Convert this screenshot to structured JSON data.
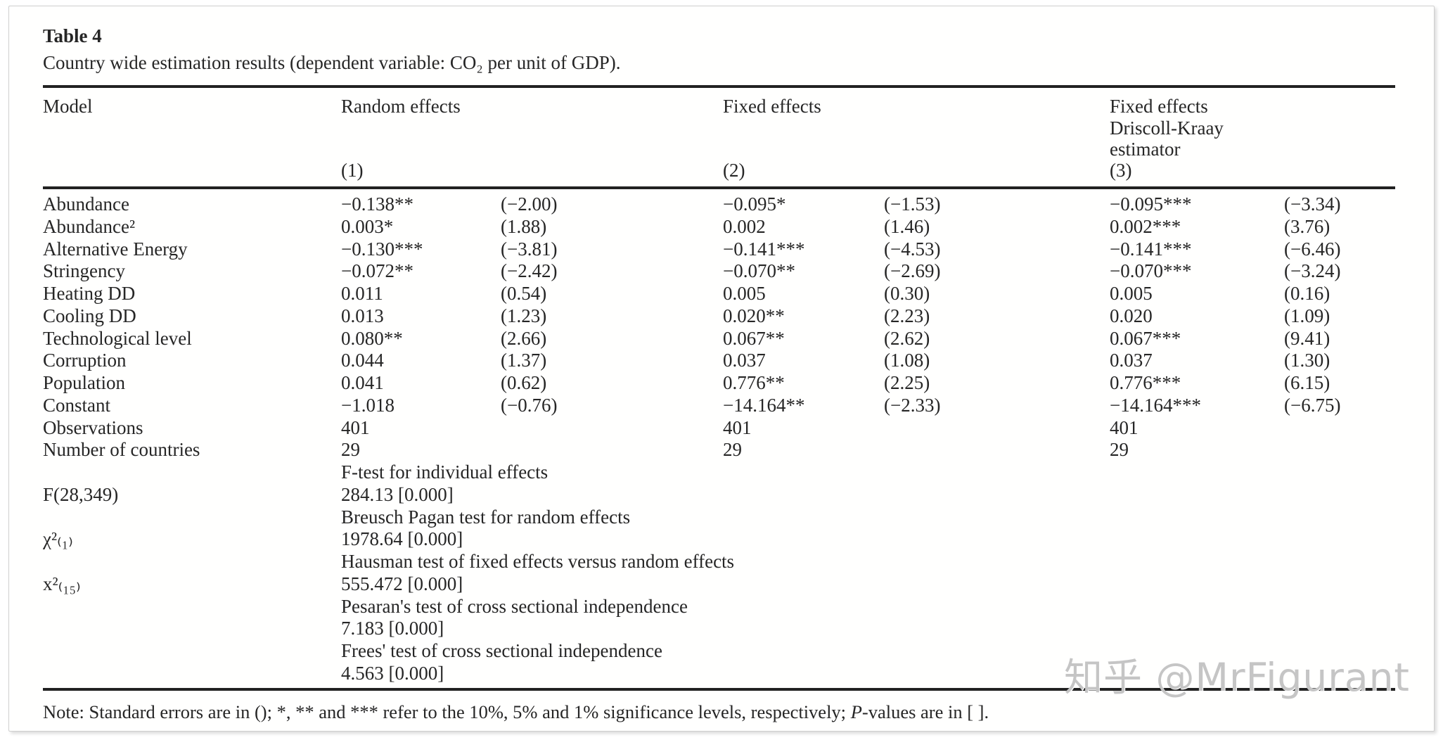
{
  "page": {
    "table_label": "Table 4",
    "caption": "Country wide estimation results (dependent variable: CO₂ per unit of GDP).",
    "watermark": "知乎 @MrFigurant"
  },
  "header": {
    "model": "Model",
    "col1_title": "Random effects",
    "col1_num": "(1)",
    "col2_title": "Fixed effects",
    "col2_num": "(2)",
    "col3_title": "Fixed effects",
    "col3_subtitle": "Driscoll-Kraay estimator",
    "col3_num": "(3)"
  },
  "rows": [
    {
      "label": "Abundance",
      "c1": "−0.138**",
      "t1": "(−2.00)",
      "c2": "−0.095*",
      "t2": "(−1.53)",
      "c3": "−0.095***",
      "t3": "(−3.34)"
    },
    {
      "label": "Abundance²",
      "c1": "0.003*",
      "t1": "(1.88)",
      "c2": "0.002",
      "t2": "(1.46)",
      "c3": "0.002***",
      "t3": "(3.76)"
    },
    {
      "label": "Alternative Energy",
      "c1": "−0.130***",
      "t1": "(−3.81)",
      "c2": "−0.141***",
      "t2": "(−4.53)",
      "c3": "−0.141***",
      "t3": "(−6.46)"
    },
    {
      "label": "Stringency",
      "c1": "−0.072**",
      "t1": "(−2.42)",
      "c2": "−0.070**",
      "t2": "(−2.69)",
      "c3": "−0.070***",
      "t3": "(−3.24)"
    },
    {
      "label": "Heating DD",
      "c1": "0.011",
      "t1": "(0.54)",
      "c2": "0.005",
      "t2": "(0.30)",
      "c3": "0.005",
      "t3": "(0.16)"
    },
    {
      "label": "Cooling DD",
      "c1": "0.013",
      "t1": "(1.23)",
      "c2": "0.020**",
      "t2": "(2.23)",
      "c3": "0.020",
      "t3": "(1.09)"
    },
    {
      "label": "Technological level",
      "c1": "0.080**",
      "t1": "(2.66)",
      "c2": "0.067**",
      "t2": "(2.62)",
      "c3": "0.067***",
      "t3": "(9.41)"
    },
    {
      "label": "Corruption",
      "c1": "0.044",
      "t1": "(1.37)",
      "c2": "0.037",
      "t2": "(1.08)",
      "c3": "0.037",
      "t3": "(1.30)"
    },
    {
      "label": "Population",
      "c1": "0.041",
      "t1": "(0.62)",
      "c2": "0.776**",
      "t2": "(2.25)",
      "c3": "0.776***",
      "t3": "(6.15)"
    },
    {
      "label": "Constant",
      "c1": "−1.018",
      "t1": "(−0.76)",
      "c2": "−14.164**",
      "t2": "(−2.33)",
      "c3": "−14.164***",
      "t3": "(−6.75)"
    },
    {
      "label": "Observations",
      "c1": "401",
      "t1": "",
      "c2": "401",
      "t2": "",
      "c3": "401",
      "t3": ""
    },
    {
      "label": "Number of countries",
      "c1": "29",
      "t1": "",
      "c2": "29",
      "t2": "",
      "c3": "29",
      "t3": ""
    }
  ],
  "stats": [
    {
      "label": "",
      "text": "F-test for individual effects"
    },
    {
      "label": "F(28,349)",
      "text": "284.13 [0.000]"
    },
    {
      "label": "",
      "text": "Breusch Pagan test for random effects"
    },
    {
      "label": "χ²₍₁₎",
      "text": "1978.64 [0.000]"
    },
    {
      "label": "",
      "text": "Hausman test of fixed effects versus random effects"
    },
    {
      "label": "x²₍₁₅₎",
      "text": "555.472 [0.000]"
    },
    {
      "label": "",
      "text": "Pesaran's test of cross sectional independence"
    },
    {
      "label": "",
      "text": "7.183 [0.000]"
    },
    {
      "label": "",
      "text": "Frees' test of cross sectional independence"
    },
    {
      "label": "",
      "text": "4.563 [0.000]"
    }
  ],
  "note": {
    "part1": "Note: Standard errors are in (); *, ** and *** refer to the 10%, 5% and 1% significance levels, respectively; ",
    "p": "P",
    "part2": "-values are in [ ]."
  }
}
